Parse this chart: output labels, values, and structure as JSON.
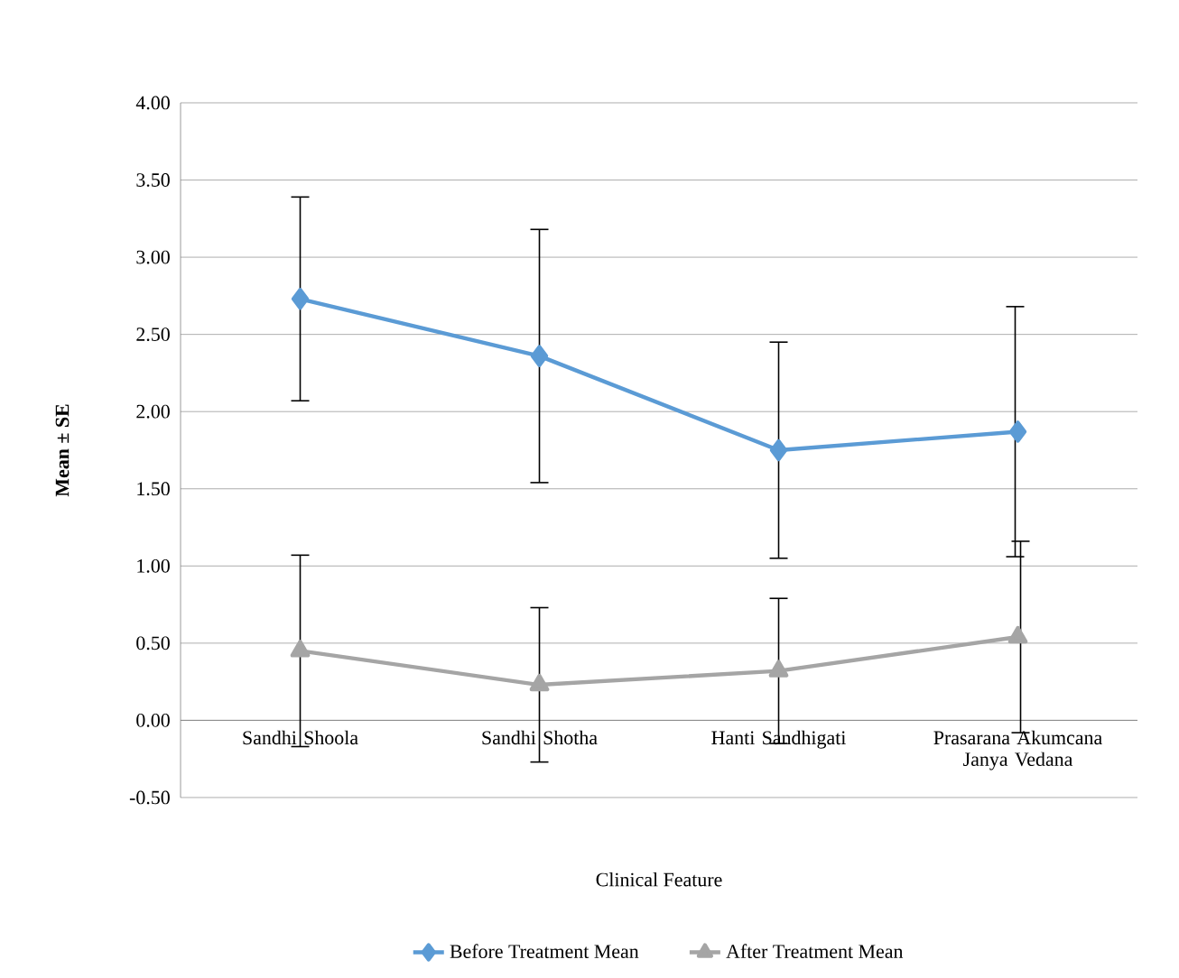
{
  "chart_data": {
    "type": "line",
    "xlabel": "Clinical Feature",
    "ylabel": "Mean ± SE",
    "categories": [
      "Sandhi Shoola",
      "Sandhi Shotha",
      "Hanti Sandhigati",
      "Prasarana Akumcana Janya Vedana"
    ],
    "series": [
      {
        "name": "Before Treatment Mean",
        "color": "#5b9bd5",
        "marker": "diamond",
        "values": [
          2.73,
          2.36,
          1.75,
          1.87
        ],
        "errors": [
          0.66,
          0.82,
          0.7,
          0.81
        ]
      },
      {
        "name": "After Treatment Mean",
        "color": "#a5a5a5",
        "marker": "triangle",
        "values": [
          0.45,
          0.23,
          0.32,
          0.54
        ],
        "errors": [
          0.62,
          0.5,
          0.47,
          0.62
        ]
      }
    ],
    "ylim": [
      -0.5,
      4
    ],
    "yticks": [
      {
        "value": -0.5,
        "label": "-0.50"
      },
      {
        "value": 0,
        "label": "0.00"
      },
      {
        "value": 0.5,
        "label": "0.50"
      },
      {
        "value": 1,
        "label": "1.00"
      },
      {
        "value": 1.5,
        "label": "1.50"
      },
      {
        "value": 2,
        "label": "2.00"
      },
      {
        "value": 2.5,
        "label": "2.50"
      },
      {
        "value": 3,
        "label": "3.00"
      },
      {
        "value": 3.5,
        "label": "3.50"
      },
      {
        "value": 4,
        "label": "4.00"
      }
    ],
    "grid": "y",
    "legend": "bottom",
    "line_style": "solid"
  }
}
